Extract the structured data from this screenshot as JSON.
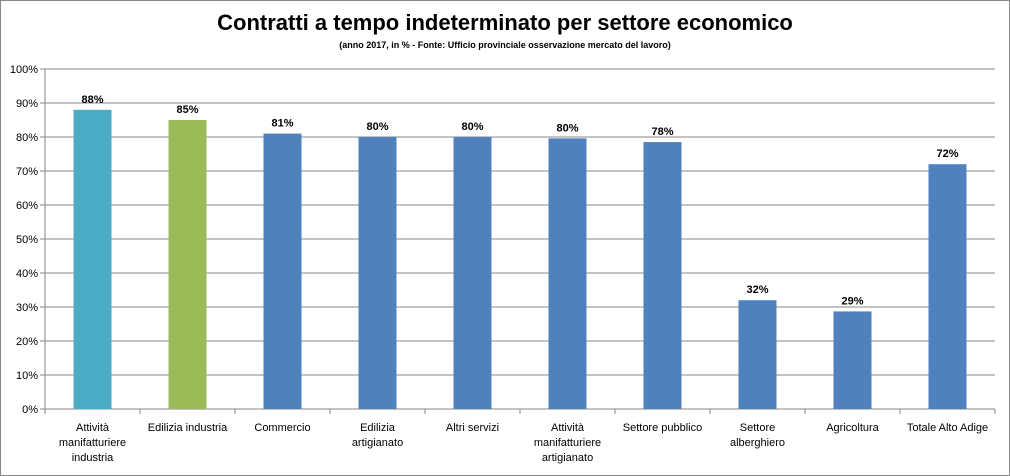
{
  "chart_data": {
    "type": "bar",
    "title": "Contratti a tempo indeterminato per settore economico",
    "subtitle": "(anno 2017, in % - Fonte: Ufficio provinciale osservazione mercato del lavoro)",
    "categories": [
      [
        "Attività",
        "manifatturiere",
        "industria"
      ],
      [
        "Edilizia industria"
      ],
      [
        "Commercio"
      ],
      [
        "Edilizia",
        "artigianato"
      ],
      [
        "Altri servizi"
      ],
      [
        "Attività",
        "manifatturiere",
        "artigianato"
      ],
      [
        "Settore pubblico"
      ],
      [
        "Settore",
        "alberghiero"
      ],
      [
        "Agricoltura"
      ],
      [
        "Totale Alto Adige"
      ]
    ],
    "values": [
      88,
      85,
      81,
      80,
      80,
      79.6,
      78.5,
      32,
      28.7,
      72
    ],
    "data_labels": [
      "88%",
      "85%",
      "81%",
      "80%",
      "80%",
      "80%",
      "78%",
      "32%",
      "29%",
      "72%"
    ],
    "colors": [
      "#4bacc6",
      "#9bbb59",
      "#4f81bd",
      "#4f81bd",
      "#4f81bd",
      "#4f81bd",
      "#4f81bd",
      "#4f81bd",
      "#4f81bd",
      "#4f81bd"
    ],
    "ylim": [
      0,
      100
    ],
    "yticks": [
      "0%",
      "10%",
      "20%",
      "30%",
      "40%",
      "50%",
      "60%",
      "70%",
      "80%",
      "90%",
      "100%"
    ],
    "grid": true,
    "legend": "none"
  }
}
